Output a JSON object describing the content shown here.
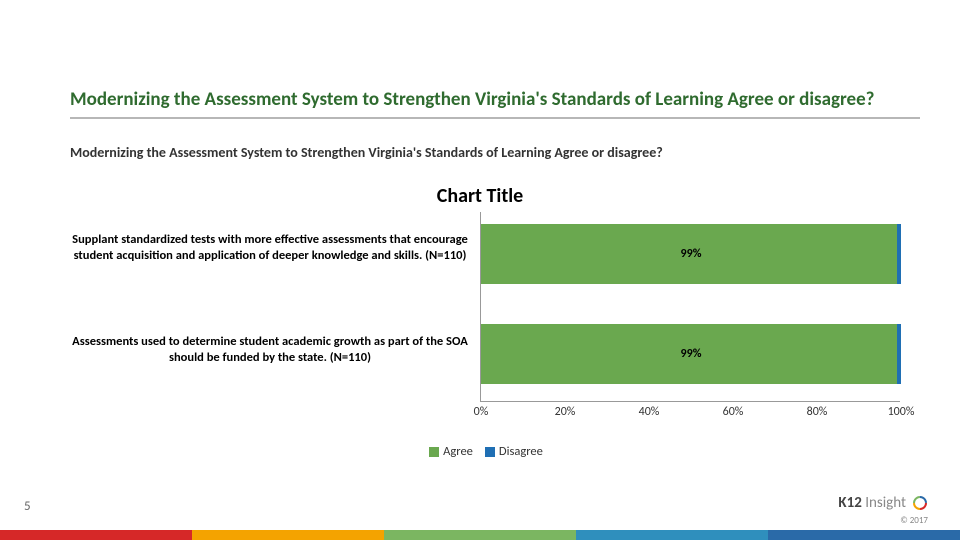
{
  "title": "Modernizing the Assessment System to Strengthen Virginia's Standards of Learning Agree or disagree?",
  "title_color": "#2f6b2f",
  "subtitle": "Modernizing the Assessment System to Strengthen Virginia's Standards of Learning Agree or disagree?",
  "page_number": "5",
  "chart": {
    "type": "stacked-bar-horizontal",
    "title": "Chart Title",
    "title_fontsize": 20,
    "categories": [
      "Supplant standardized tests with more effective assessments that encourage student acquisition and application of deeper knowledge and skills. (N=110)",
      "Assessments used to determine student academic growth as part of the SOA should be funded by the state. (N=110)"
    ],
    "series": [
      {
        "name": "Agree",
        "color": "#6aa84f",
        "values": [
          99,
          99
        ]
      },
      {
        "name": "Disagree",
        "color": "#1f6fb4",
        "values": [
          1,
          1
        ]
      }
    ],
    "bar_labels": [
      "99%",
      "99%"
    ],
    "bar_label_fontsize": 12,
    "category_fontsize": 12.5,
    "xaxis": {
      "min": 0,
      "max": 100,
      "ticks": [
        0,
        20,
        40,
        60,
        80,
        100
      ],
      "tick_labels": [
        "0%",
        "20%",
        "40%",
        "60%",
        "80%",
        "100%"
      ]
    },
    "background_color": "#ffffff",
    "axis_color": "#999999"
  },
  "legend": [
    {
      "label": "Agree",
      "color": "#6aa84f"
    },
    {
      "label": "Disagree",
      "color": "#1f6fb4"
    }
  ],
  "brand": {
    "text_bold": "K12",
    "text_light": " Insight"
  },
  "copyright": "© 2017",
  "footer_colors": [
    "#d62828",
    "#f4a300",
    "#7bb661",
    "#2f8fbd",
    "#2a6aa8"
  ]
}
